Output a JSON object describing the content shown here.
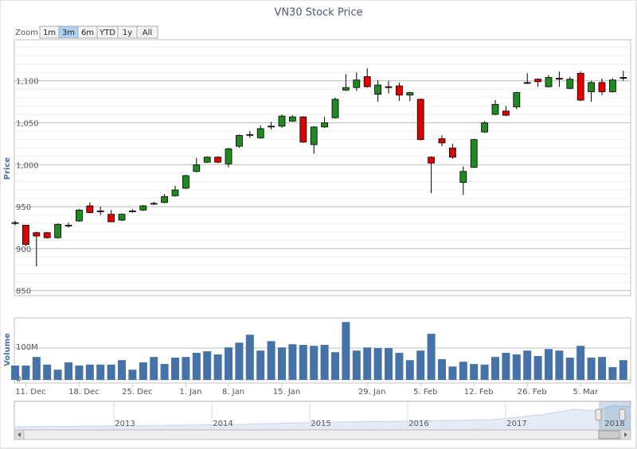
{
  "zoom": {
    "label": "Zoom",
    "buttons": [
      "1m",
      "3m",
      "6m",
      "YTD",
      "1y",
      "All"
    ],
    "selected": 1
  },
  "chart_data": {
    "type": "candlestick",
    "title": "VN30 Stock Price",
    "y_label": "Price",
    "categories": [
      null,
      "11. Dec",
      null,
      null,
      null,
      null,
      "18. Dec",
      null,
      null,
      null,
      null,
      "25. Dec",
      null,
      null,
      null,
      null,
      "1. Jan",
      null,
      null,
      null,
      "8. Jan",
      null,
      null,
      null,
      null,
      "15. Jan",
      null,
      null,
      null,
      null,
      null,
      null,
      null,
      "29. Jan",
      null,
      null,
      null,
      null,
      "5. Feb",
      null,
      null,
      null,
      null,
      "12. Feb",
      null,
      null,
      null,
      null,
      "26. Feb",
      null,
      null,
      null,
      null,
      "5. Mar",
      null,
      null,
      null,
      null
    ],
    "open": [
      930,
      928,
      919,
      919,
      913,
      927,
      933,
      951,
      945,
      941,
      934,
      944,
      946,
      953,
      955,
      963,
      972,
      992,
      1003,
      1009,
      1001,
      1022,
      1035,
      1032,
      1045,
      1046,
      1052,
      1057,
      1024,
      1045,
      1056,
      1089,
      1092,
      1105,
      1084,
      1093,
      1094,
      1083,
      1078,
      1009,
      1031,
      1020,
      979,
      997,
      1039,
      1060,
      1064,
      1069,
      1098,
      1102,
      1093,
      1103,
      1091,
      1109,
      1087,
      1098,
      1087,
      1103
    ],
    "high": [
      933,
      928,
      920,
      920,
      930,
      931,
      947,
      955,
      950,
      946,
      942,
      947,
      952,
      956,
      965,
      975,
      988,
      1008,
      1010,
      1010,
      1020,
      1036,
      1040,
      1047,
      1051,
      1060,
      1059,
      1058,
      1046,
      1057,
      1080,
      1108,
      1110,
      1115,
      1101,
      1100,
      1098,
      1087,
      1079,
      1010,
      1035,
      1025,
      998,
      1031,
      1052,
      1077,
      1070,
      1087,
      1109,
      1103,
      1107,
      1111,
      1105,
      1111,
      1100,
      1103,
      1103,
      1112
    ],
    "low": [
      928,
      903,
      879,
      912,
      912,
      925,
      932,
      942,
      940,
      932,
      933,
      943,
      945,
      952,
      954,
      962,
      971,
      991,
      1002,
      1002,
      997,
      1020,
      1032,
      1031,
      1042,
      1044,
      1051,
      1026,
      1013,
      1044,
      1055,
      1088,
      1088,
      1092,
      1075,
      1085,
      1076,
      1076,
      1029,
      966,
      1022,
      1007,
      964,
      996,
      1038,
      1059,
      1058,
      1066,
      1096,
      1093,
      1092,
      1093,
      1090,
      1076,
      1075,
      1083,
      1086,
      1100
    ],
    "close": [
      931,
      905,
      915,
      913,
      929,
      928,
      946,
      943,
      944,
      932,
      941,
      945,
      951,
      954,
      962,
      970,
      987,
      1000,
      1009,
      1003,
      1019,
      1035,
      1036,
      1043,
      1046,
      1058,
      1057,
      1027,
      1045,
      1050,
      1078,
      1092,
      1101,
      1093,
      1095,
      1092,
      1083,
      1086,
      1030,
      1002,
      1026,
      1009,
      992,
      1030,
      1050,
      1072,
      1059,
      1086,
      1097,
      1099,
      1104,
      1102,
      1102,
      1077,
      1098,
      1087,
      1101,
      1104
    ],
    "up_color": "#1f8a1f",
    "down_color": "#e00000",
    "ylim": [
      844,
      1149
    ],
    "yticks": [
      850,
      900,
      950,
      {
        "value": 1000,
        "label": "1,000"
      },
      {
        "value": 1050,
        "label": "1,050"
      },
      {
        "value": 1100,
        "label": "1,100"
      }
    ],
    "minor_grid": 10,
    "volume": {
      "label": "Volume",
      "color": "#4572a7",
      "values": [
        45000000,
        45000000,
        72000000,
        48000000,
        32000000,
        55000000,
        45000000,
        48000000,
        48000000,
        48000000,
        62000000,
        32000000,
        55000000,
        72000000,
        50000000,
        70000000,
        72000000,
        85000000,
        90000000,
        80000000,
        102000000,
        117000000,
        142000000,
        92000000,
        122000000,
        102000000,
        112000000,
        110000000,
        107000000,
        110000000,
        87000000,
        182000000,
        92000000,
        102000000,
        100000000,
        100000000,
        85000000,
        62000000,
        92000000,
        145000000,
        65000000,
        42000000,
        57000000,
        50000000,
        48000000,
        72000000,
        85000000,
        80000000,
        92000000,
        75000000,
        97000000,
        92000000,
        70000000,
        107000000,
        70000000,
        72000000,
        40000000,
        62000000
      ],
      "ylim": [
        -10000000,
        195000000
      ],
      "yticks": [
        0,
        {
          "value": 100000000,
          "label": "100M"
        }
      ]
    }
  },
  "navigator": {
    "labels": [
      "2013",
      "2014",
      "2015",
      "2016",
      "2017",
      "2018"
    ]
  }
}
